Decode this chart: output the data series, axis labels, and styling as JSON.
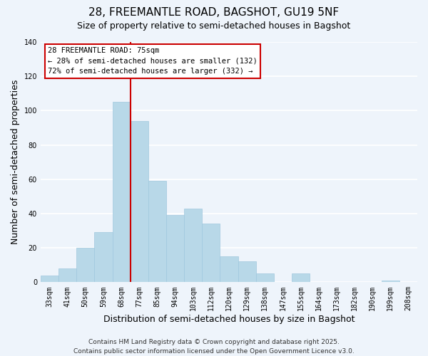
{
  "title": "28, FREEMANTLE ROAD, BAGSHOT, GU19 5NF",
  "subtitle": "Size of property relative to semi-detached houses in Bagshot",
  "xlabel": "Distribution of semi-detached houses by size in Bagshot",
  "ylabel": "Number of semi-detached properties",
  "bar_color": "#b8d8e8",
  "bar_edge_color": "#a0c8de",
  "categories": [
    "33sqm",
    "41sqm",
    "50sqm",
    "59sqm",
    "68sqm",
    "77sqm",
    "85sqm",
    "94sqm",
    "103sqm",
    "112sqm",
    "120sqm",
    "129sqm",
    "138sqm",
    "147sqm",
    "155sqm",
    "164sqm",
    "173sqm",
    "182sqm",
    "190sqm",
    "199sqm",
    "208sqm"
  ],
  "values": [
    4,
    8,
    20,
    29,
    105,
    94,
    59,
    39,
    43,
    34,
    15,
    12,
    5,
    0,
    5,
    0,
    0,
    0,
    0,
    1,
    0
  ],
  "ylim": [
    0,
    140
  ],
  "yticks": [
    0,
    20,
    40,
    60,
    80,
    100,
    120,
    140
  ],
  "vline_index": 5,
  "vline_color": "#cc0000",
  "annotation_title": "28 FREEMANTLE ROAD: 75sqm",
  "annotation_line1": "← 28% of semi-detached houses are smaller (132)",
  "annotation_line2": "72% of semi-detached houses are larger (332) →",
  "annotation_box_color": "white",
  "annotation_box_edge_color": "#cc0000",
  "footer1": "Contains HM Land Registry data © Crown copyright and database right 2025.",
  "footer2": "Contains public sector information licensed under the Open Government Licence v3.0.",
  "background_color": "#eef4fb",
  "grid_color": "white",
  "title_fontsize": 11,
  "subtitle_fontsize": 9,
  "axis_label_fontsize": 9,
  "tick_fontsize": 7,
  "annotation_fontsize": 7.5,
  "footer_fontsize": 6.5
}
